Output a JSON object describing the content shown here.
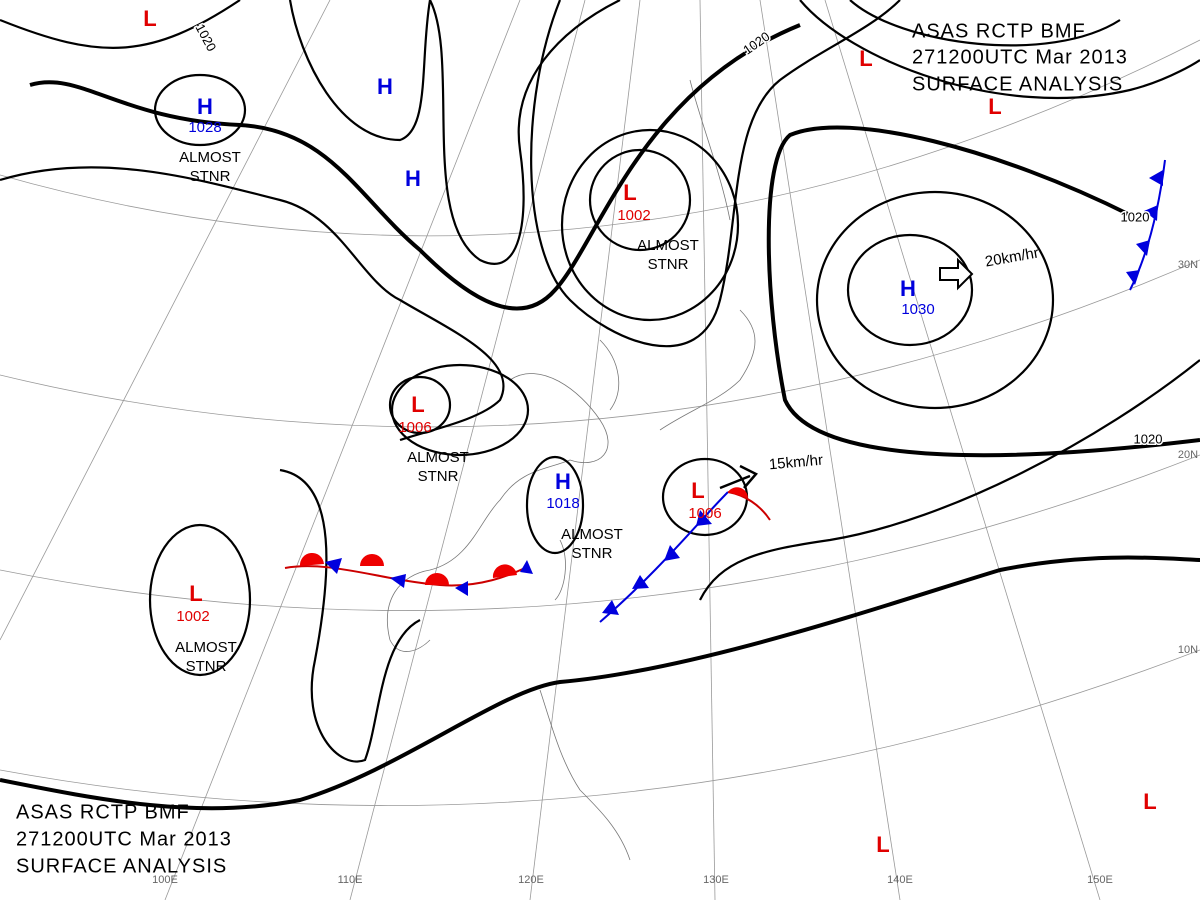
{
  "header": {
    "line1": "ASAS     RCTP     BMF",
    "line2": "271200UTC     Mar     2013",
    "line3": "SURFACE  ANALYSIS"
  },
  "centers": [
    {
      "symbol": "L"
    },
    {
      "symbol": "H",
      "pressure": "1028",
      "status": [
        "ALMOST",
        "STNR"
      ]
    },
    {
      "symbol": "H"
    },
    {
      "symbol": "H"
    },
    {
      "symbol": "L",
      "pressure": "1002",
      "status": [
        "ALMOST",
        "STNR"
      ]
    },
    {
      "symbol": "L"
    },
    {
      "symbol": "L"
    },
    {
      "symbol": "H",
      "pressure": "1030"
    },
    {
      "symbol": "L",
      "pressure": "1006",
      "status": [
        "ALMOST",
        "STNR"
      ]
    },
    {
      "symbol": "H",
      "pressure": "1018",
      "status": [
        "ALMOST",
        "STNR"
      ]
    },
    {
      "symbol": "L",
      "pressure": "1006"
    },
    {
      "symbol": "L",
      "pressure": "1002",
      "status": [
        "ALMOST",
        "STNR"
      ]
    },
    {
      "symbol": "L"
    },
    {
      "symbol": "L"
    }
  ],
  "isobar_labels": [
    "1020",
    "1020",
    "1020",
    "1020"
  ],
  "motion_labels": [
    "20km/hr",
    "15km/hr"
  ],
  "longitude_labels": [
    "100E",
    "110E",
    "120E",
    "130E",
    "140E",
    "150E"
  ],
  "latitude_labels": [
    "30N",
    "20N",
    "10N"
  ]
}
